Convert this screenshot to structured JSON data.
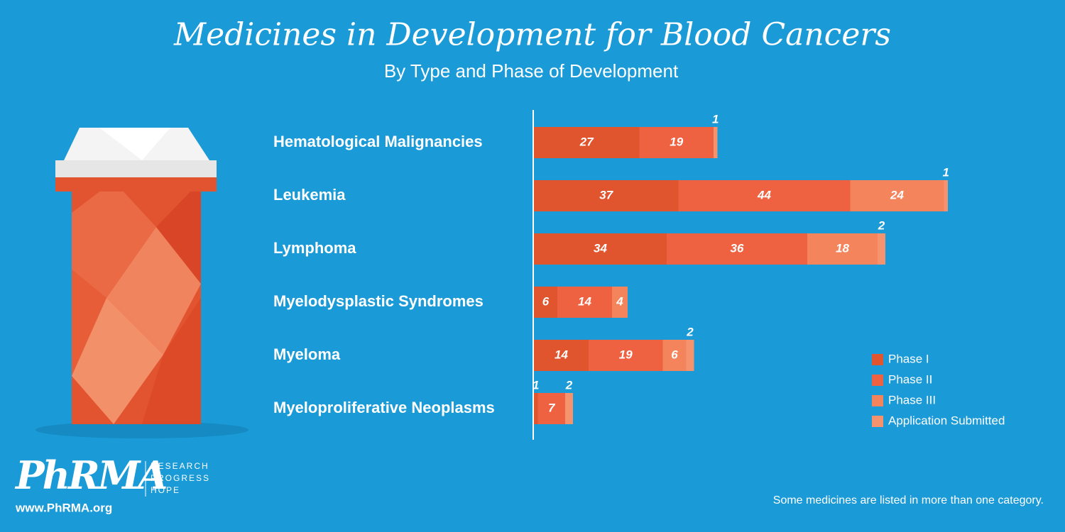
{
  "chart_data": {
    "type": "bar",
    "orientation": "horizontal",
    "stacked": true,
    "title": "Medicines in Development for Blood Cancers",
    "subtitle": "By Type and Phase of Development",
    "categories": [
      "Hematological Malignancies",
      "Leukemia",
      "Lymphoma",
      "Myelodysplastic Syndromes",
      "Myeloma",
      "Myeloproliferative Neoplasms"
    ],
    "series": [
      {
        "name": "Phase I",
        "color": "#e0542e",
        "values": [
          27,
          37,
          34,
          6,
          14,
          1
        ]
      },
      {
        "name": "Phase II",
        "color": "#ee6141",
        "values": [
          19,
          44,
          36,
          14,
          19,
          7
        ]
      },
      {
        "name": "Phase III",
        "color": "#f3845c",
        "values": [
          null,
          24,
          18,
          4,
          6,
          null
        ]
      },
      {
        "name": "Application Submitted",
        "color": "#f6936f",
        "values": [
          1,
          1,
          2,
          null,
          2,
          2
        ]
      }
    ],
    "legend": "lower right",
    "note": "Some medicines are listed in more than one category."
  },
  "logo": {
    "name": "PhRMA",
    "tagline": [
      "RESEARCH",
      "PROGRESS",
      "HOPE"
    ],
    "url": "www.PhRMA.org"
  }
}
